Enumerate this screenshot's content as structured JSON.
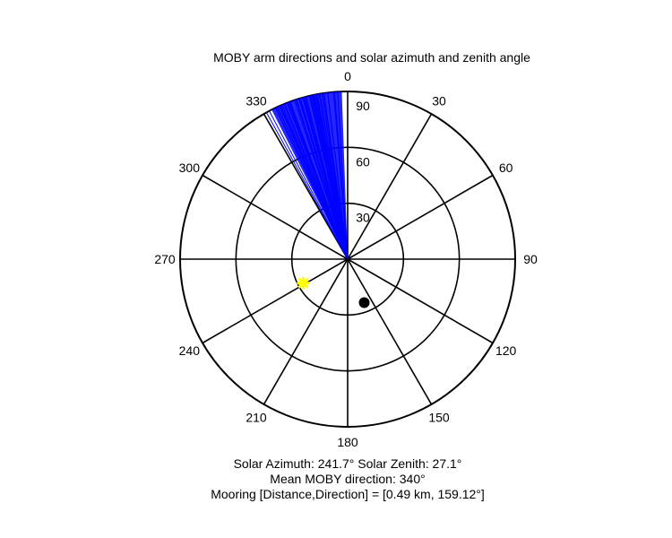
{
  "chart_data": {
    "type": "polar",
    "title": "MOBY arm directions and solar azimuth and zenith angle",
    "angle_ticks": [
      "0",
      "30",
      "60",
      "90",
      "120",
      "150",
      "180",
      "210",
      "240",
      "270",
      "300",
      "330"
    ],
    "radial_ticks": [
      "30",
      "60",
      "90"
    ],
    "r_max": 90,
    "angle_convention": "compass (0 at top, clockwise)",
    "arm_direction_range_deg": [
      331,
      358
    ],
    "arm_direction_count": 60,
    "arm_color": "#0000ff",
    "solar_azimuth": 241.7,
    "solar_zenith": 27.1,
    "solar_marker_color": "#ffff00",
    "mooring_direction": 159.12,
    "mooring_marker_radius": 25,
    "mooring_marker_color": "#000000",
    "annotations": [
      "Solar Azimuth: 241.7°   Solar Zenith: 27.1°",
      "Mean MOBY direction: 340°",
      "Mooring [Distance,Direction] = [0.49 km, 159.12°]"
    ]
  }
}
